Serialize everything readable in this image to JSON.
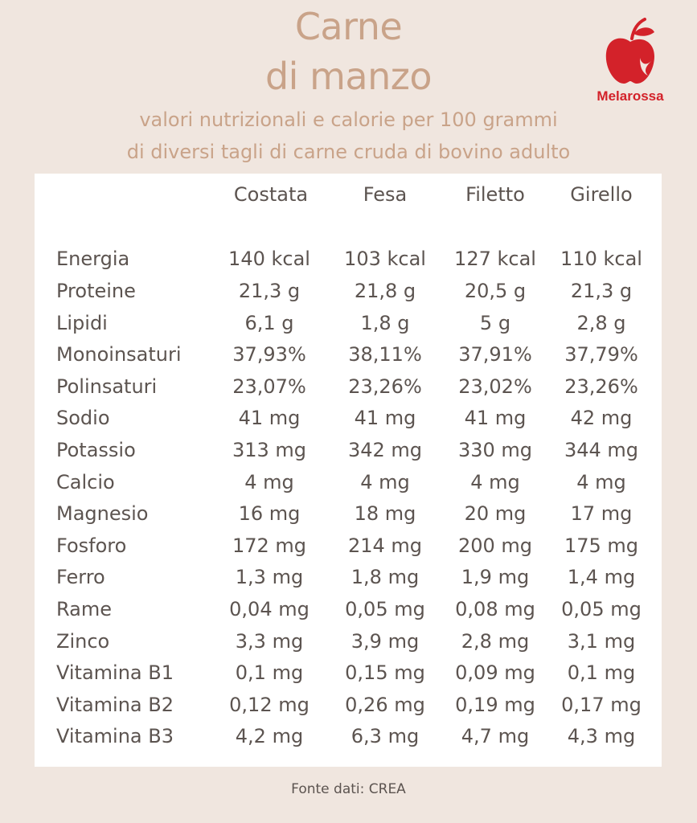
{
  "header": {
    "title_line1": "Carne",
    "title_line2": "di manzo",
    "subtitle_line1": "valori nutrizionali e calorie per 100 grammi",
    "subtitle_line2": "di diversi tagli di carne cruda di bovino adulto"
  },
  "logo": {
    "brand": "Melarossa",
    "icon": "apple-icon",
    "color": "#d3222a"
  },
  "colors": {
    "background": "#f0e6df",
    "accent": "#c9a389",
    "text": "#5c5450",
    "panel": "#ffffff"
  },
  "table": {
    "columns": [
      "Costata",
      "Fesa",
      "Filetto",
      "Girello"
    ],
    "rows": [
      {
        "label": "Energia",
        "values": [
          "140 kcal",
          "103 kcal",
          "127 kcal",
          "110 kcal"
        ]
      },
      {
        "label": "Proteine",
        "values": [
          "21,3 g",
          "21,8 g",
          "20,5 g",
          "21,3 g"
        ]
      },
      {
        "label": "Lipidi",
        "values": [
          "6,1 g",
          "1,8 g",
          "5 g",
          "2,8 g"
        ]
      },
      {
        "label": "Monoinsaturi",
        "values": [
          "37,93%",
          "38,11%",
          "37,91%",
          "37,79%"
        ]
      },
      {
        "label": "Polinsaturi",
        "values": [
          "23,07%",
          "23,26%",
          "23,02%",
          "23,26%"
        ]
      },
      {
        "label": "Sodio",
        "values": [
          "41 mg",
          "41 mg",
          "41 mg",
          "42 mg"
        ]
      },
      {
        "label": "Potassio",
        "values": [
          "313 mg",
          "342 mg",
          "330 mg",
          "344 mg"
        ]
      },
      {
        "label": "Calcio",
        "values": [
          "4 mg",
          "4 mg",
          "4 mg",
          "4 mg"
        ]
      },
      {
        "label": "Magnesio",
        "values": [
          "16 mg",
          "18 mg",
          "20 mg",
          "17 mg"
        ]
      },
      {
        "label": "Fosforo",
        "values": [
          "172 mg",
          "214 mg",
          "200 mg",
          "175 mg"
        ]
      },
      {
        "label": "Ferro",
        "values": [
          "1,3 mg",
          "1,8 mg",
          "1,9 mg",
          "1,4 mg"
        ]
      },
      {
        "label": "Rame",
        "values": [
          "0,04 mg",
          "0,05 mg",
          "0,08 mg",
          "0,05 mg"
        ]
      },
      {
        "label": "Zinco",
        "values": [
          "3,3 mg",
          "3,9 mg",
          "2,8 mg",
          "3,1 mg"
        ]
      },
      {
        "label": "Vitamina B1",
        "values": [
          "0,1 mg",
          "0,15 mg",
          "0,09 mg",
          "0,1 mg"
        ]
      },
      {
        "label": "Vitamina B2",
        "values": [
          "0,12 mg",
          "0,26 mg",
          "0,19 mg",
          "0,17 mg"
        ]
      },
      {
        "label": "Vitamina B3",
        "values": [
          "4,2 mg",
          "6,3 mg",
          "4,7 mg",
          "4,3 mg"
        ]
      }
    ]
  },
  "footer": {
    "source": "Fonte dati: CREA"
  }
}
